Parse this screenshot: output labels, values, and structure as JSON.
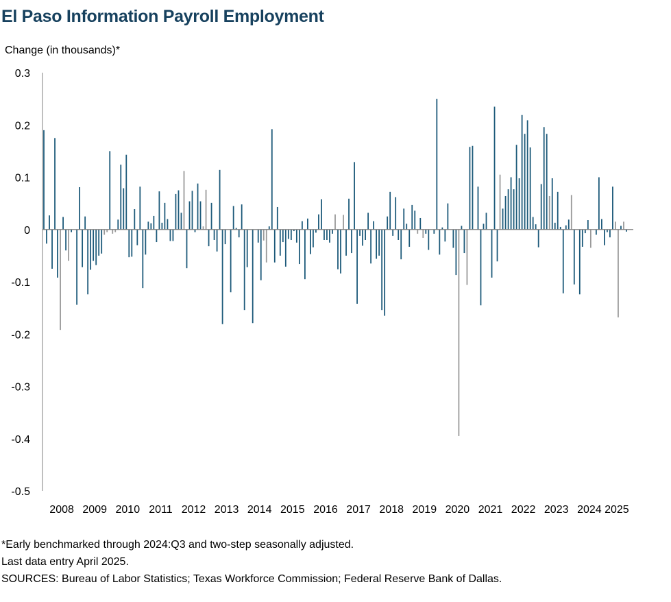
{
  "title": "El Paso Information Payroll Employment",
  "ylabel": "Change (in thousands)*",
  "footnotes": [
    "*Early benchmarked through 2024:Q3 and two-step seasonally adjusted.",
    "Last data entry April 2025.",
    "SOURCES: Bureau of Labor Statistics; Texas Workforce Commission; Federal Reserve Bank of Dallas."
  ],
  "colors": {
    "bar": "#1d5a7a",
    "bar_light": "#9a9a9a",
    "title": "#17415e",
    "axis": "#7f7f7f"
  },
  "chart_data": {
    "type": "bar",
    "title": "El Paso Information Payroll Employment",
    "ylabel": "Change (in thousands)*",
    "xlabel": "",
    "ylim": [
      -0.5,
      0.3
    ],
    "yticks": [
      "0.3",
      "0.2",
      "0.1",
      "0",
      "-0.1",
      "-0.2",
      "-0.3",
      "-0.4",
      "-0.5"
    ],
    "ytick_values": [
      0.3,
      0.2,
      0.1,
      0,
      -0.1,
      -0.2,
      -0.3,
      -0.4,
      -0.5
    ],
    "xticks": [
      "2008",
      "2009",
      "2010",
      "2011",
      "2012",
      "2013",
      "2014",
      "2015",
      "2016",
      "2017",
      "2018",
      "2019",
      "2020",
      "2021",
      "2022",
      "2023",
      "2024",
      "2025"
    ],
    "grid": false,
    "frequency": "monthly",
    "start": "2007-12",
    "end": "2025-04",
    "values": [
      0.19,
      -0.027,
      0.027,
      -0.075,
      0.175,
      -0.092,
      -0.192,
      0.024,
      -0.04,
      -0.06,
      -0.005,
      0.0,
      -0.144,
      0.081,
      -0.072,
      0.025,
      -0.124,
      -0.077,
      -0.06,
      -0.068,
      -0.05,
      -0.046,
      -0.01,
      -0.005,
      0.15,
      -0.008,
      -0.005,
      0.019,
      0.124,
      0.079,
      0.143,
      -0.053,
      -0.052,
      0.039,
      -0.03,
      0.082,
      -0.112,
      -0.048,
      0.015,
      0.012,
      0.026,
      -0.024,
      0.073,
      0.013,
      0.051,
      0.02,
      -0.022,
      -0.022,
      0.068,
      0.075,
      0.032,
      0.112,
      -0.074,
      0.054,
      0.074,
      -0.005,
      0.088,
      0.054,
      0.006,
      0.076,
      -0.032,
      0.051,
      -0.02,
      -0.042,
      0.114,
      -0.181,
      -0.028,
      0.0,
      -0.12,
      0.045,
      0.003,
      -0.015,
      0.048,
      -0.154,
      -0.072,
      0.0,
      -0.179,
      0.0,
      -0.025,
      -0.097,
      -0.021,
      -0.063,
      0.006,
      0.192,
      -0.063,
      0.043,
      -0.05,
      -0.024,
      -0.071,
      -0.018,
      -0.02,
      -0.003,
      -0.025,
      -0.066,
      0.016,
      -0.095,
      0.021,
      -0.047,
      -0.034,
      -0.006,
      0.029,
      0.058,
      -0.02,
      -0.02,
      -0.025,
      -0.008,
      0.029,
      -0.076,
      -0.084,
      0.028,
      -0.05,
      0.059,
      -0.045,
      0.129,
      -0.142,
      -0.012,
      -0.031,
      -0.02,
      0.032,
      -0.065,
      0.016,
      -0.056,
      -0.05,
      -0.154,
      -0.165,
      0.025,
      0.072,
      -0.012,
      0.062,
      -0.02,
      -0.057,
      0.04,
      0.011,
      -0.033,
      0.047,
      0.036,
      -0.008,
      0.022,
      -0.016,
      -0.008,
      -0.039,
      0.0,
      -0.008,
      0.25,
      -0.048,
      0.004,
      -0.023,
      0.05,
      0.0,
      -0.035,
      -0.087,
      -0.395,
      0.007,
      -0.045,
      -0.106,
      0.158,
      0.16,
      0.0,
      0.082,
      -0.145,
      0.011,
      0.032,
      0.0,
      -0.092,
      0.235,
      -0.061,
      0.105,
      0.04,
      0.064,
      0.077,
      0.1,
      0.077,
      0.162,
      0.098,
      0.219,
      0.183,
      0.209,
      0.157,
      0.024,
      0.01,
      -0.034,
      0.087,
      0.196,
      0.183,
      0.064,
      0.098,
      0.013,
      0.072,
      0.005,
      -0.122,
      0.008,
      0.019,
      0.066,
      -0.105,
      0.0,
      -0.124,
      -0.033,
      -0.007,
      0.018,
      -0.035,
      0.0,
      -0.01,
      0.1,
      0.02,
      -0.03,
      -0.005,
      -0.015,
      0.082,
      0.015,
      -0.168,
      0.007,
      0.015,
      -0.004
    ],
    "light_bars": [
      6,
      9,
      22,
      23,
      25,
      26,
      51,
      58,
      59,
      80,
      81,
      106,
      109,
      136,
      138,
      151,
      154,
      166,
      184,
      192,
      199,
      208,
      209,
      211,
      213,
      220,
      223,
      232,
      234,
      235,
      236
    ]
  }
}
